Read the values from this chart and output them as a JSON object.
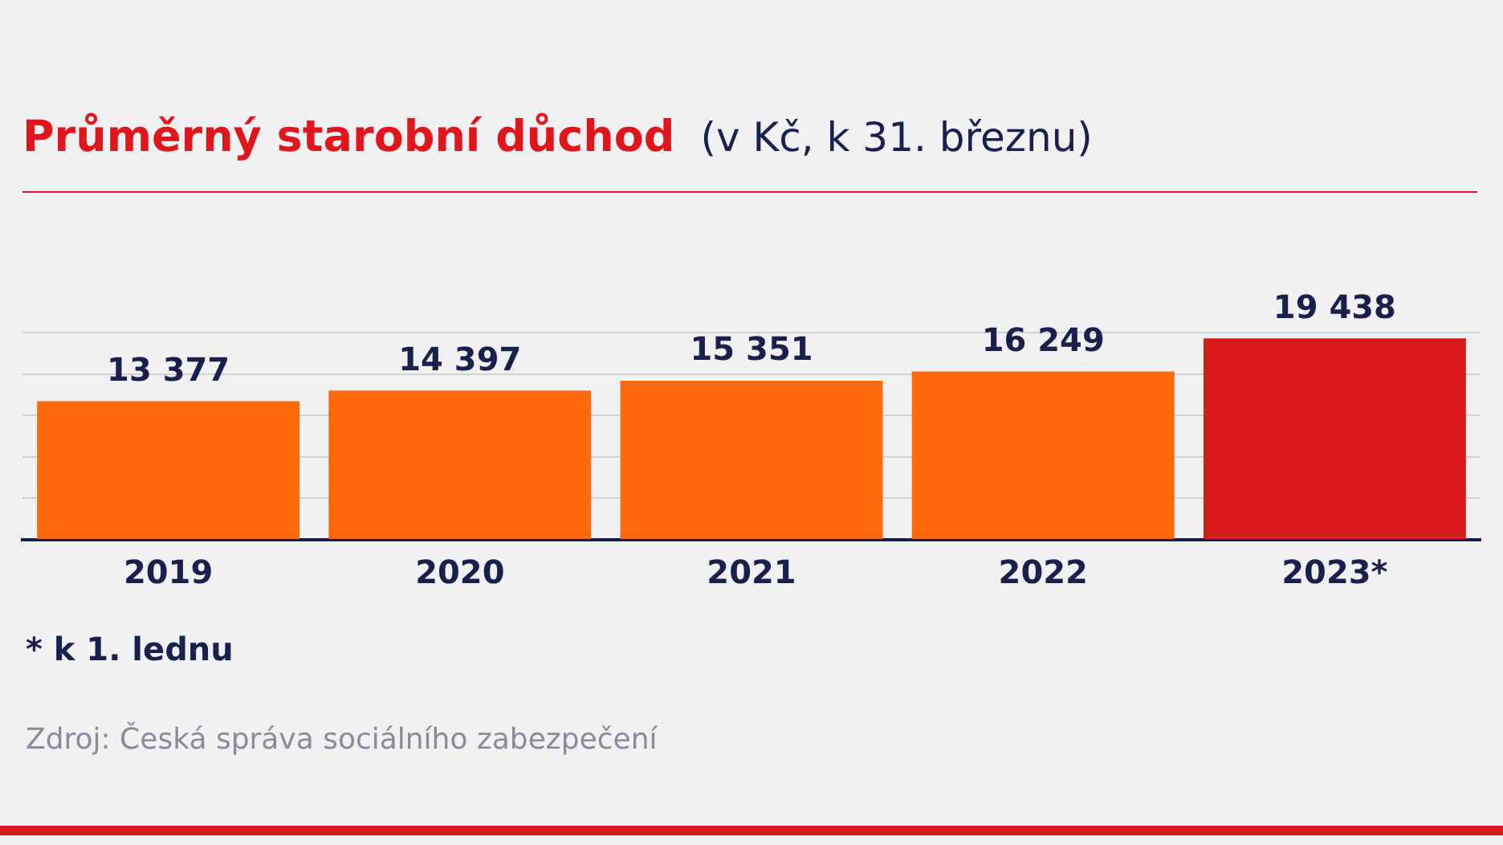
{
  "chart_data": {
    "type": "bar",
    "title": "Průměrný starobní důchod",
    "subtitle": "(v Kč, k 31. březnu)",
    "categories": [
      "2019",
      "2020",
      "2021",
      "2022",
      "2023*"
    ],
    "values": [
      13377,
      14397,
      15351,
      16249,
      19438
    ],
    "colors": [
      "#ff6a0d",
      "#ff6a0d",
      "#ff6a0d",
      "#ff6a0d",
      "#dc1a1e"
    ],
    "ylim": [
      0,
      20000
    ],
    "yticks": [
      {
        "value": 0,
        "label": null
      },
      {
        "value": 4000,
        "label": null
      },
      {
        "value": 8000,
        "label": null
      },
      {
        "value": 12000,
        "label": null
      },
      {
        "value": 16000,
        "label": null
      },
      {
        "value": 20000,
        "label": null
      }
    ],
    "grid": "y",
    "tick_labels": "x",
    "data_labels": true,
    "annotations": [
      "* k 1. lednu",
      "Zdroj: Česká správa sociálního zabezpečení"
    ]
  }
}
